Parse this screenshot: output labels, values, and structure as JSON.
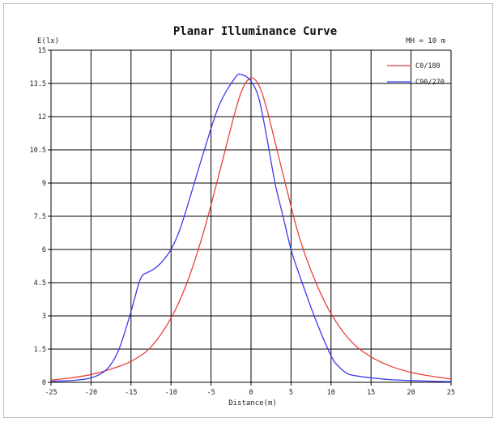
{
  "chart_data": {
    "type": "line",
    "title": "Planar Illuminance Curve",
    "xlabel": "Distance(m)",
    "ylabel": "E(lx)",
    "annotation": "MH = 10 m",
    "xlim": [
      -25,
      25
    ],
    "ylim": [
      0,
      15
    ],
    "x_ticks": [
      -25,
      -20,
      -15,
      -10,
      -5,
      0,
      5,
      10,
      15,
      20,
      25
    ],
    "y_ticks": [
      0,
      1.5,
      3,
      4.5,
      6,
      7.5,
      9,
      10.5,
      12,
      13.5,
      15
    ],
    "x_tick_labels": [
      "-25",
      "-20",
      "-15",
      "-10",
      "-5",
      "0",
      "5",
      "10",
      "15",
      "20",
      "25"
    ],
    "y_tick_labels": [
      "0",
      "1.5",
      "3",
      "4.5",
      "6",
      "7.5",
      "9",
      "10.5",
      "12",
      "13.5",
      "15"
    ],
    "grid": true,
    "legend_position": "top-right",
    "series": [
      {
        "name": "C0/180",
        "color": "#e8413c",
        "x": [
          -25,
          -22.5,
          -20,
          -17.5,
          -15,
          -12.5,
          -10,
          -8,
          -6,
          -4,
          -2,
          -1,
          0,
          1,
          2,
          4,
          6,
          8,
          10,
          12.5,
          15,
          17.5,
          20,
          22.5,
          25
        ],
        "y": [
          0.1,
          0.2,
          0.35,
          0.6,
          0.95,
          1.6,
          2.9,
          4.5,
          6.7,
          9.4,
          12.2,
          13.3,
          13.75,
          13.4,
          12.3,
          9.4,
          6.6,
          4.6,
          3.1,
          1.85,
          1.15,
          0.72,
          0.45,
          0.28,
          0.15
        ]
      },
      {
        "name": "C90/270",
        "color": "#3b3bef",
        "x": [
          -25,
          -22.5,
          -20,
          -18,
          -16.5,
          -15,
          -14,
          -13.5,
          -13,
          -12,
          -11,
          -10,
          -9,
          -8,
          -6,
          -4,
          -2,
          -1.2,
          0,
          1,
          2,
          3,
          4,
          5,
          6,
          8,
          10,
          11,
          12,
          13,
          15,
          17.5,
          20,
          22.5,
          25
        ],
        "y": [
          0.05,
          0.08,
          0.2,
          0.6,
          1.5,
          3.2,
          4.5,
          4.85,
          4.95,
          5.15,
          5.5,
          6.0,
          6.8,
          7.9,
          10.3,
          12.5,
          13.75,
          13.9,
          13.6,
          12.8,
          11.0,
          9.0,
          7.5,
          6.0,
          4.9,
          2.9,
          1.2,
          0.7,
          0.4,
          0.3,
          0.2,
          0.12,
          0.08,
          0.05,
          0.03
        ]
      }
    ]
  }
}
